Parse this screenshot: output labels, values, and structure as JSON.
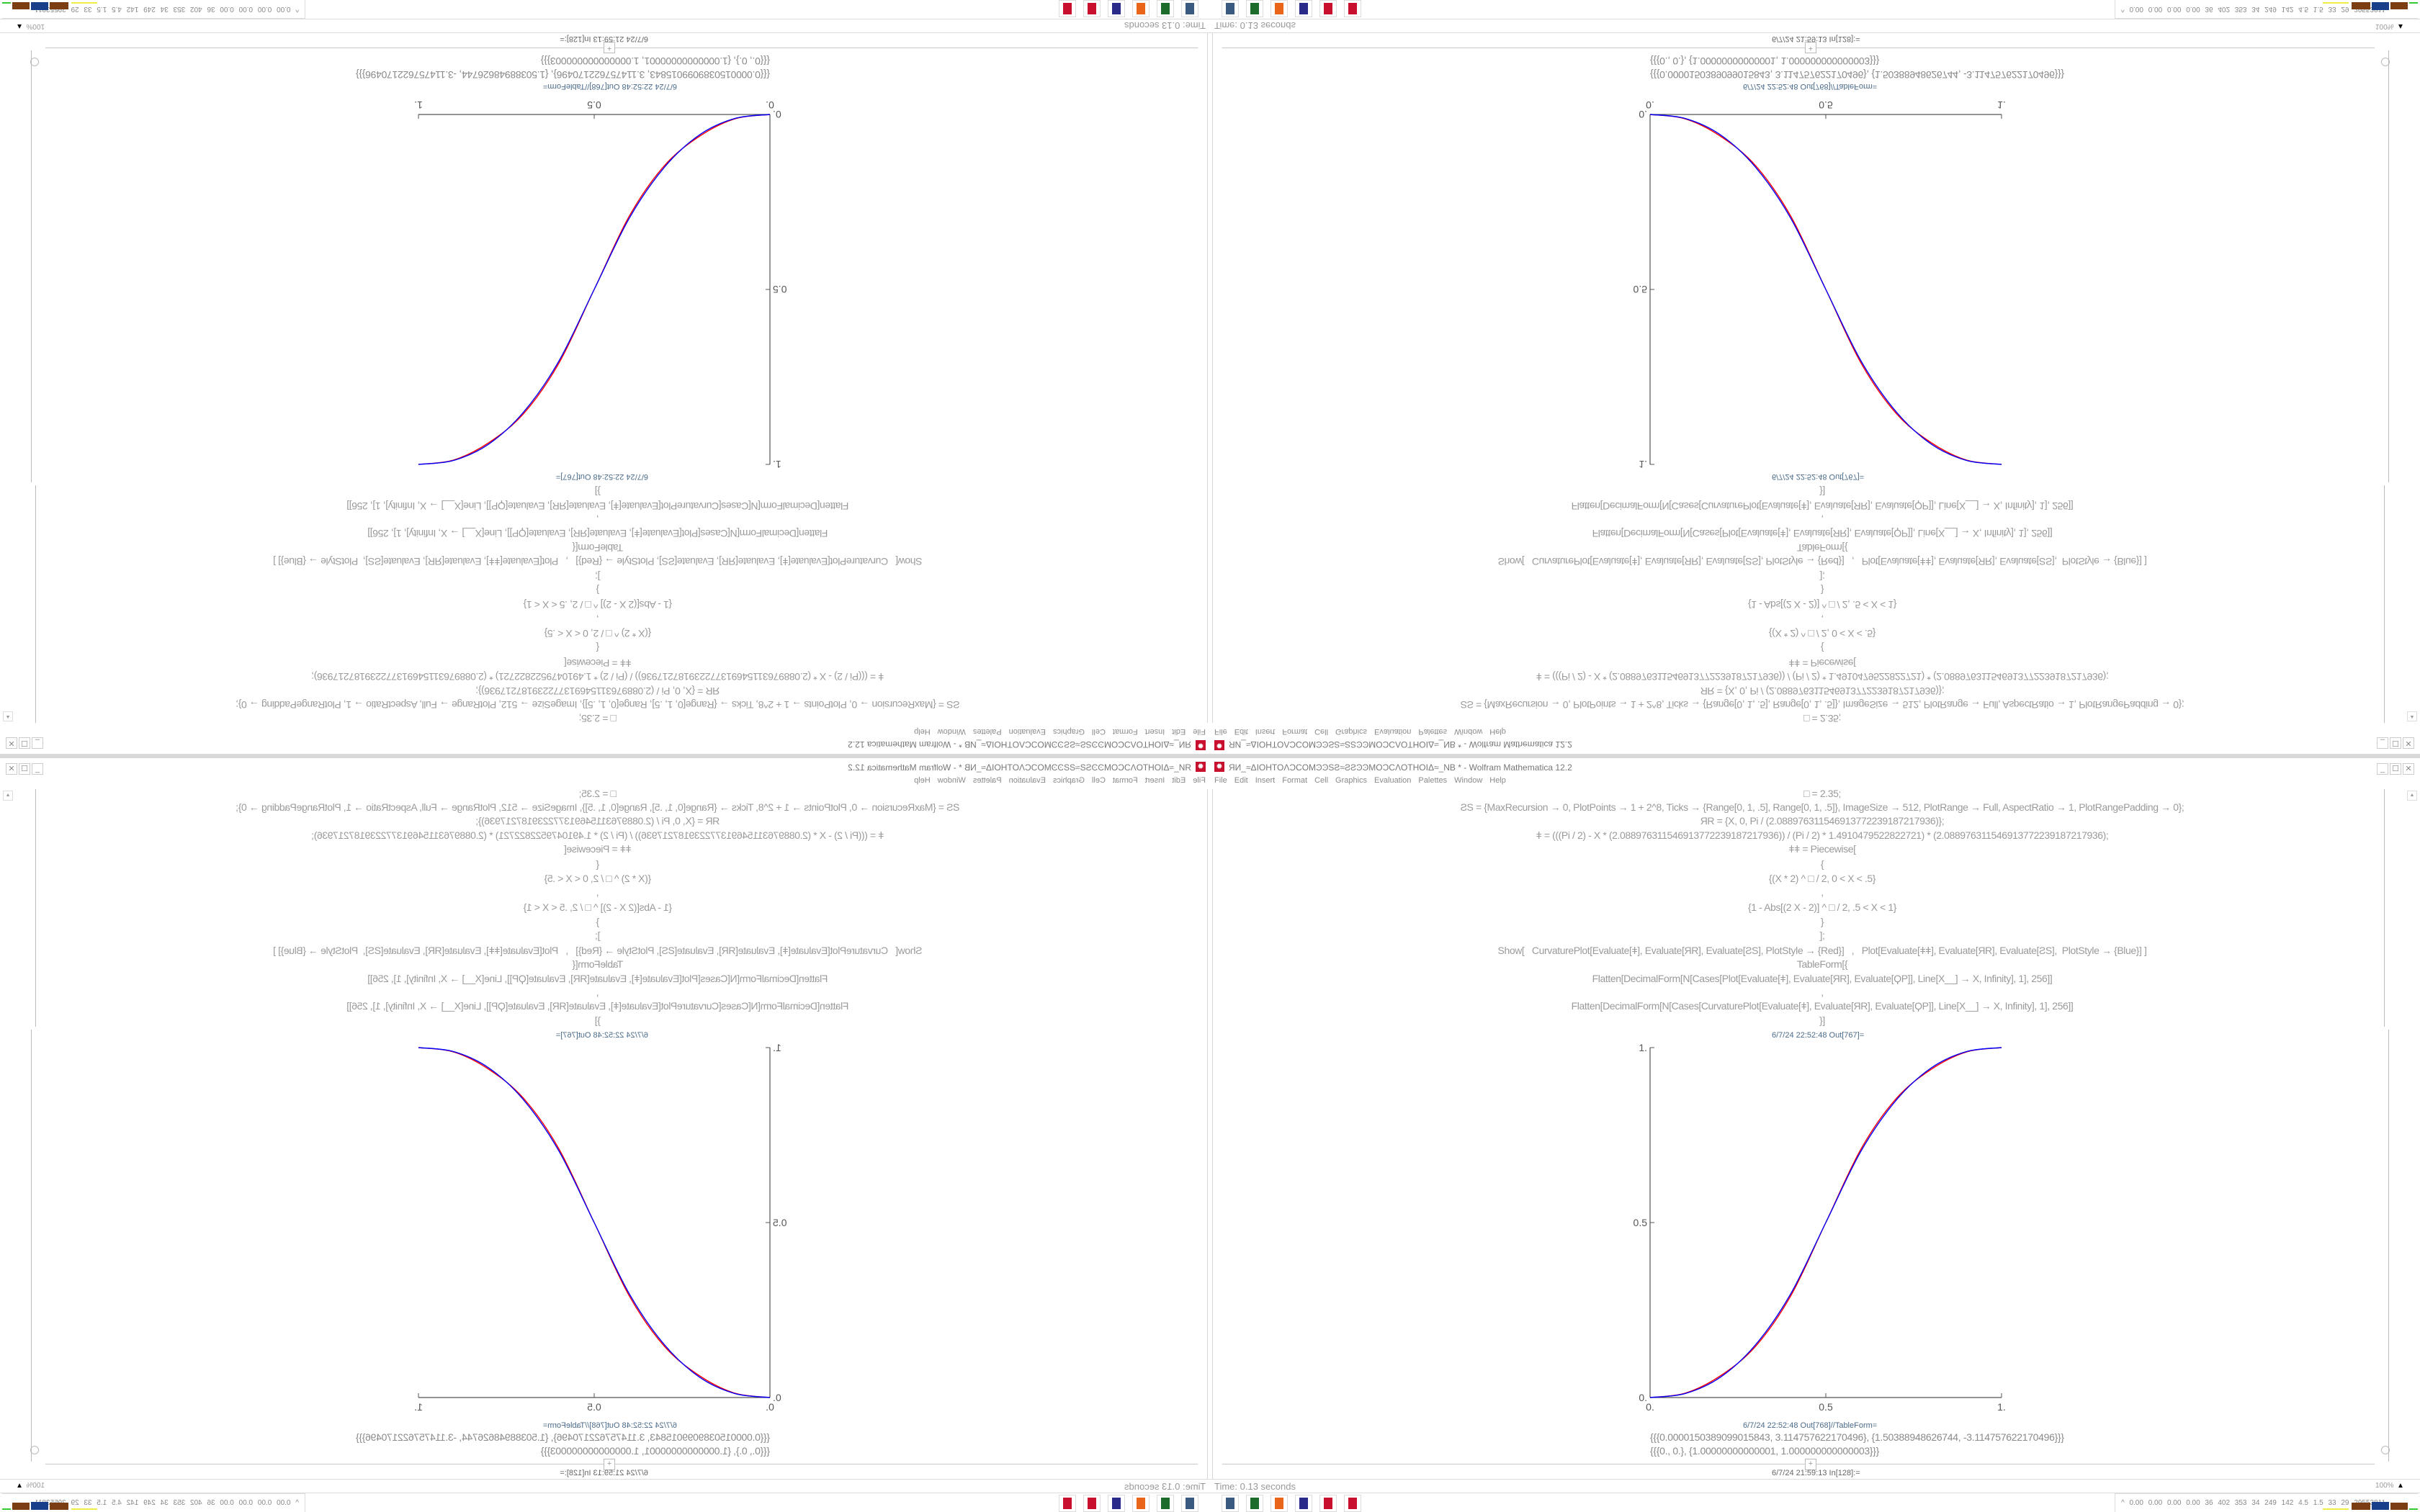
{
  "window": {
    "title": "ЯИ_≈ΔIOHTOΛϽϹOMϿϿSƧ≈ƧƧϿϿMOϽϹΛOTHOIΔ≈_NB * - Wolfram Mathematica 12.2",
    "controls": {
      "minimize": "_",
      "maximize": "☐",
      "close": "✕"
    }
  },
  "menu": [
    "File",
    "Edit",
    "Insert",
    "Format",
    "Cell",
    "Graphics",
    "Evaluation",
    "Palettes",
    "Window",
    "Help"
  ],
  "code_lines": [
    "□ = 2.35;",
    "ƧS = {MaxRecursion → 0, PlotPoints → 1 + 2^8, Ticks → {Range[0, 1, .5], Range[0, 1, .5]}, ImageSize → 512, PlotRange → Full, AspectRatio → 1, PlotRangePadding → 0};",
    "ЯR = {X, 0, Pi / (2.088976311546913772239187217936)};",
    "ǂ = (((Pi / 2) - X * (2.088976311546913772239187217936)) / (Pi / 2) * 1.4910479522822721) * (2.088976311546913772239187217936);",
    "ǂǂ = Piecewise[",
    "{",
    "{(X * 2) ^ □ / 2, 0 < X < .5}",
    ",",
    "{1 - Abs[(2 X - 2)] ^ □ / 2, .5 < X < 1}",
    "}",
    "];",
    "Show[   CurvaturePlot[Evaluate[ǂ], Evaluate[ЯR], Evaluate[ƧS], PlotStyle → {Red}]   ,   Plot[Evaluate[ǂǂ], Evaluate[ЯR], Evaluate[ƧS],  PlotStyle → {Blue}] ]",
    "TableForm[{",
    "Flatten[DecimalForm[N[Cases[Plot[Evaluate[ǂ], Evaluate[ЯR], Evaluate[ϘP]], Line[X__] → X, Infinity], 1], 256]]",
    ",",
    "Flatten[DecimalForm[N[Cases[CurvaturePlot[Evaluate[ǂ], Evaluate[ЯR], Evaluate[ϘP]], Line[X__] → X, Infinity], 1], 256]]",
    "}]"
  ],
  "out767_label": "6/7/24 22:52:48 Out[767]=",
  "out768_label": "6/7/24 22:52:48 Out[768]//TableForm=",
  "out768_lines": [
    "{{{0.0000150389099015843, 3.114757622170496}, {1.50388948626744, -3.114757622170496}}}",
    "{{{0., 0.}, {1.00000000000001, 1.000000000000003}}}"
  ],
  "in128_label": "6/7/24 21:59:13 In[128]:=",
  "new_cell_plus": "+",
  "status": {
    "time": "Time: 0.13 seconds",
    "zoom": "100%"
  },
  "taskbar": {
    "icons": [
      "remote-desktop-icon",
      "terminal-icon",
      "firefox-icon",
      "floppy-64-icon",
      "mathematica-icon",
      "mathematica-icon"
    ],
    "monitor_text": "^ 0.00 0.00 0.00 0.00 36 402 353 34 249 142 4.5 1.5 33 29 29553811"
  },
  "chart_data": {
    "type": "line",
    "xlim": [
      0,
      1
    ],
    "ylim": [
      0,
      1
    ],
    "x_ticks": [
      "0.",
      "0.5",
      "1."
    ],
    "y_ticks": [
      "0.",
      "0.5",
      "1."
    ],
    "grid": false,
    "x": [
      0,
      0.1,
      0.2,
      0.3,
      0.4,
      0.5,
      0.6,
      0.7,
      0.8,
      0.9,
      1
    ],
    "series": [
      {
        "color": "#ff0000",
        "values": [
          0,
          0.0125,
          0.062,
          0.146,
          0.29,
          0.5,
          0.71,
          0.854,
          0.938,
          0.9875,
          1
        ]
      },
      {
        "color": "#0000ff",
        "values": [
          0,
          0.0114,
          0.058,
          0.1505,
          0.296,
          0.5,
          0.704,
          0.8495,
          0.942,
          0.9886,
          1
        ]
      }
    ]
  }
}
